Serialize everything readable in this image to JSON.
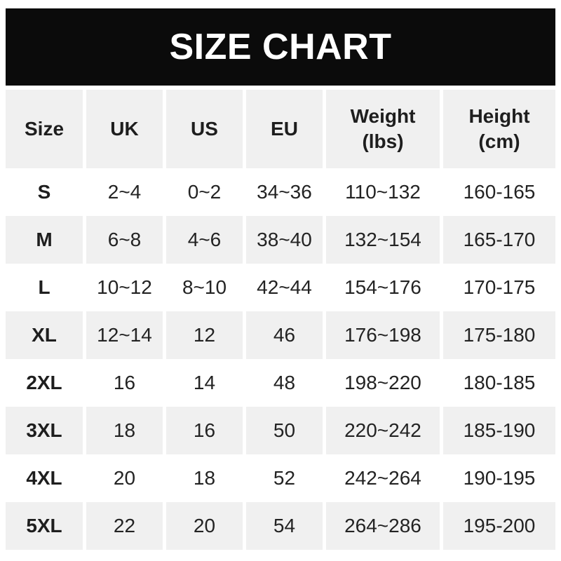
{
  "banner": {
    "bg_color": "#0b0b0b",
    "text_color": "#ffffff"
  },
  "table_style": {
    "alt_row_bg": "#f0f0f0",
    "row_bg": "#ffffff",
    "text_color": "#232323"
  },
  "chart_data": {
    "type": "table",
    "title": "SIZE CHART",
    "columns": [
      "Size",
      "UK",
      "US",
      "EU",
      "Weight (lbs)",
      "Height (cm)"
    ],
    "rows": [
      [
        "S",
        "2~4",
        "0~2",
        "34~36",
        "110~132",
        "160-165"
      ],
      [
        "M",
        "6~8",
        "4~6",
        "38~40",
        "132~154",
        "165-170"
      ],
      [
        "L",
        "10~12",
        "8~10",
        "42~44",
        "154~176",
        "170-175"
      ],
      [
        "XL",
        "12~14",
        "12",
        "46",
        "176~198",
        "175-180"
      ],
      [
        "2XL",
        "16",
        "14",
        "48",
        "198~220",
        "180-185"
      ],
      [
        "3XL",
        "18",
        "16",
        "50",
        "220~242",
        "185-190"
      ],
      [
        "4XL",
        "20",
        "18",
        "52",
        "242~264",
        "190-195"
      ],
      [
        "5XL",
        "22",
        "20",
        "54",
        "264~286",
        "195-200"
      ]
    ]
  }
}
